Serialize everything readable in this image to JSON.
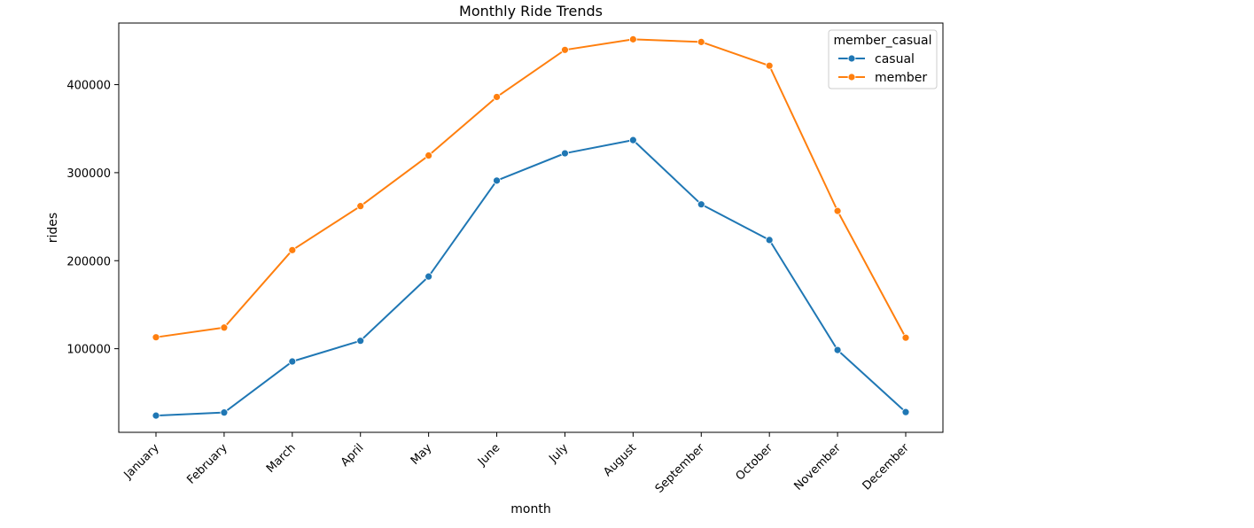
{
  "chart_data": {
    "type": "line",
    "title": "Monthly Ride Trends",
    "xlabel": "month",
    "ylabel": "rides",
    "categories": [
      "January",
      "February",
      "March",
      "April",
      "May",
      "June",
      "July",
      "August",
      "September",
      "October",
      "November",
      "December"
    ],
    "ylim": [
      5000,
      470000
    ],
    "yticks": [
      100000,
      200000,
      300000,
      400000
    ],
    "ytick_labels": [
      "100000",
      "200000",
      "300000",
      "400000"
    ],
    "grid": false,
    "legend": {
      "title": "member_casual",
      "placement": "top-right"
    },
    "series": [
      {
        "name": "casual",
        "color": "#1f77b4",
        "marker": "circle",
        "values": [
          24000,
          27500,
          85500,
          109000,
          182000,
          291000,
          322000,
          337000,
          264000,
          223500,
          98500,
          28000
        ]
      },
      {
        "name": "member",
        "color": "#ff7f0e",
        "marker": "circle",
        "values": [
          113000,
          124000,
          212000,
          262000,
          319500,
          386000,
          439500,
          451500,
          448500,
          421500,
          256500,
          112500
        ]
      }
    ]
  }
}
